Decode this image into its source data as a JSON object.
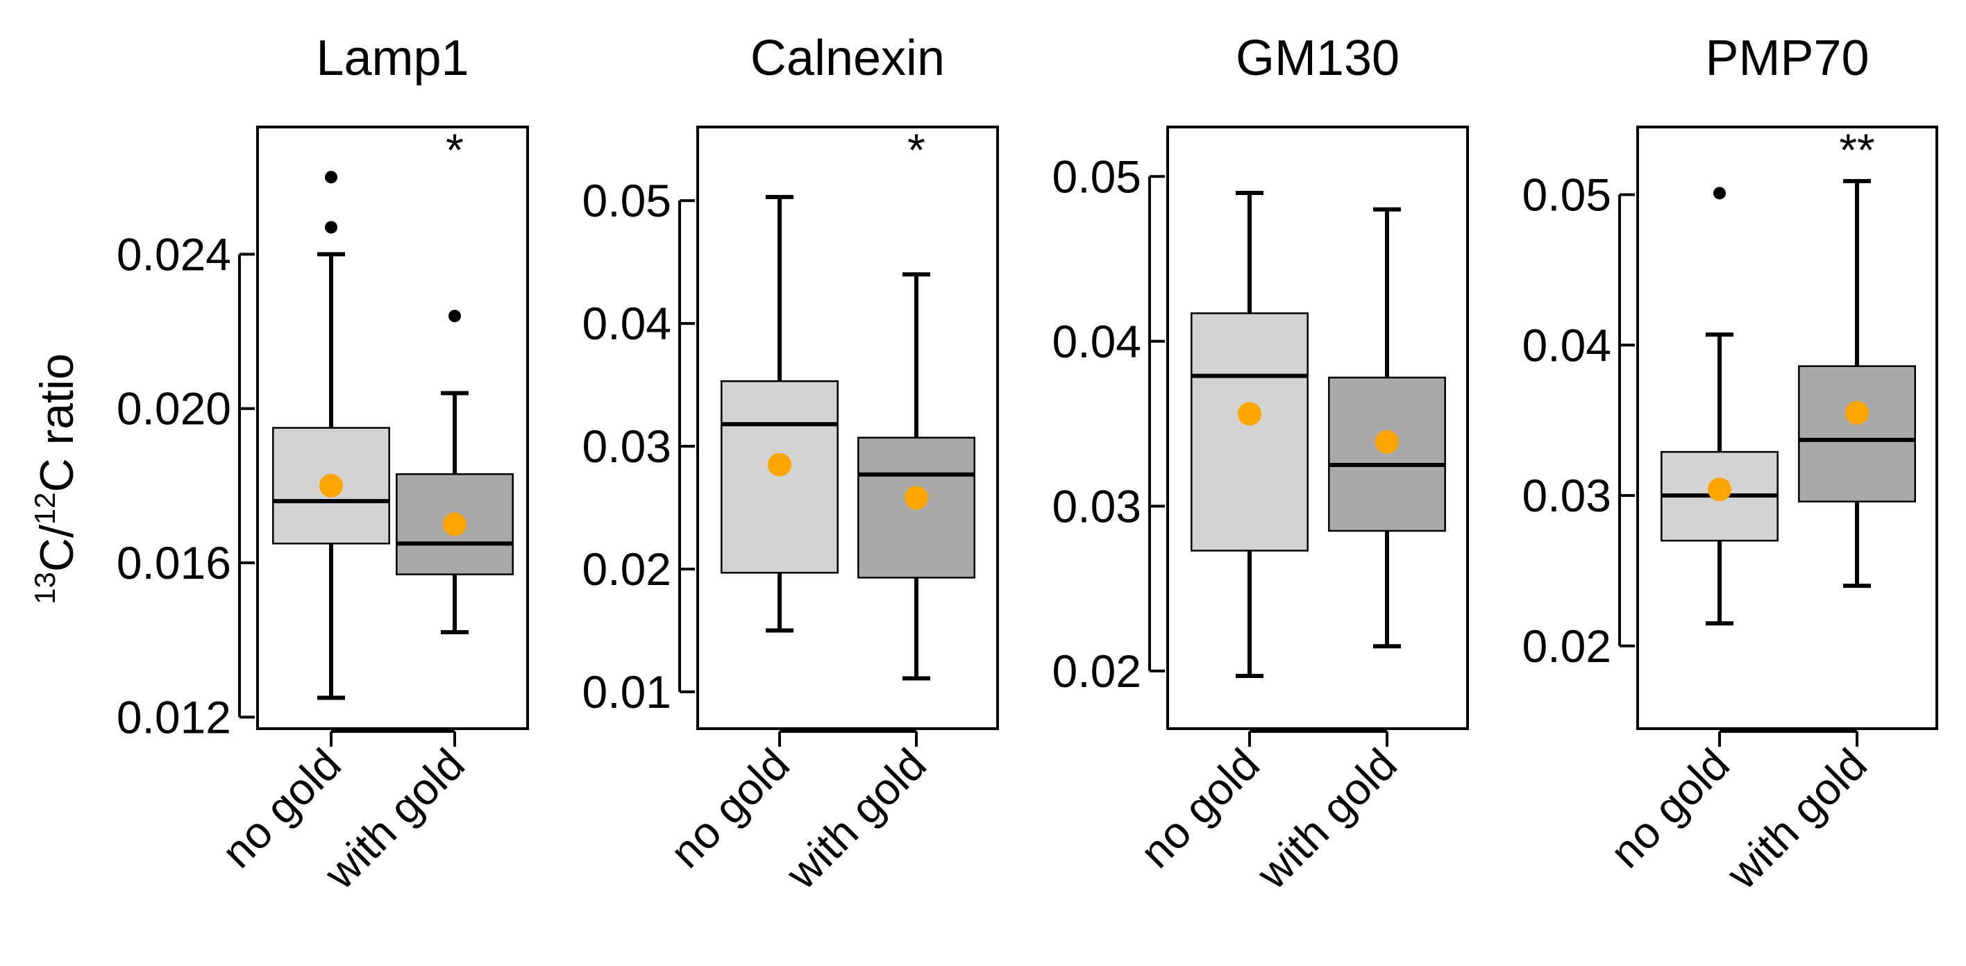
{
  "chart_data": {
    "type": "box",
    "ylabel": {
      "sup1": "13",
      "base1": "C/",
      "sup2": "12",
      "base2": "C ratio"
    },
    "categories": [
      "no gold",
      "with gold"
    ],
    "colors": {
      "no_gold_fill": "#d3d3d3",
      "with_gold_fill": "#a9a9a9",
      "mean_marker": "#ffa500",
      "line": "#000000"
    },
    "panels": [
      {
        "title": "Lamp1",
        "ylim": [
          0.0117,
          0.0273
        ],
        "ticks": [
          0.012,
          0.016,
          0.02,
          0.024
        ],
        "tick_labels": [
          "0.012",
          "0.016",
          "0.020",
          "0.024"
        ],
        "significance": "*",
        "boxes": [
          {
            "category": "no gold",
            "whisker_low": 0.0125,
            "q1": 0.0165,
            "median": 0.0176,
            "q3": 0.0195,
            "whisker_high": 0.024,
            "mean": 0.018,
            "outliers": [
              0.026,
              0.0247
            ]
          },
          {
            "category": "with gold",
            "whisker_low": 0.0142,
            "q1": 0.0157,
            "median": 0.0165,
            "q3": 0.0183,
            "whisker_high": 0.0204,
            "mean": 0.017,
            "outliers": [
              0.0224
            ]
          }
        ]
      },
      {
        "title": "Calnexin",
        "ylim": [
          0.007,
          0.056
        ],
        "ticks": [
          0.01,
          0.02,
          0.03,
          0.04,
          0.05
        ],
        "tick_labels": [
          "0.01",
          "0.02",
          "0.03",
          "0.04",
          "0.05"
        ],
        "significance": "*",
        "boxes": [
          {
            "category": "no gold",
            "whisker_low": 0.015,
            "q1": 0.0197,
            "median": 0.0318,
            "q3": 0.0353,
            "whisker_high": 0.0503,
            "mean": 0.0285,
            "outliers": []
          },
          {
            "category": "with gold",
            "whisker_low": 0.0111,
            "q1": 0.0193,
            "median": 0.0277,
            "q3": 0.0307,
            "whisker_high": 0.044,
            "mean": 0.0258,
            "outliers": []
          }
        ]
      },
      {
        "title": "GM130",
        "ylim": [
          0.0165,
          0.053
        ],
        "ticks": [
          0.02,
          0.03,
          0.04,
          0.05
        ],
        "tick_labels": [
          "0.02",
          "0.03",
          "0.04",
          "0.05"
        ],
        "significance": "",
        "boxes": [
          {
            "category": "no gold",
            "whisker_low": 0.0197,
            "q1": 0.0273,
            "median": 0.0379,
            "q3": 0.0417,
            "whisker_high": 0.049,
            "mean": 0.0356,
            "outliers": []
          },
          {
            "category": "with gold",
            "whisker_low": 0.0215,
            "q1": 0.0285,
            "median": 0.0325,
            "q3": 0.0378,
            "whisker_high": 0.048,
            "mean": 0.0339,
            "outliers": []
          }
        ]
      },
      {
        "title": "PMP70",
        "ylim": [
          0.0145,
          0.0545
        ],
        "ticks": [
          0.02,
          0.03,
          0.04,
          0.05
        ],
        "tick_labels": [
          "0.02",
          "0.03",
          "0.04",
          "0.05"
        ],
        "significance": "**",
        "boxes": [
          {
            "category": "no gold",
            "whisker_low": 0.0215,
            "q1": 0.027,
            "median": 0.03,
            "q3": 0.0329,
            "whisker_high": 0.0407,
            "mean": 0.0304,
            "outliers": [
              0.0501
            ]
          },
          {
            "category": "with gold",
            "whisker_low": 0.024,
            "q1": 0.0296,
            "median": 0.0337,
            "q3": 0.0386,
            "whisker_high": 0.0509,
            "mean": 0.0355,
            "outliers": []
          }
        ]
      }
    ]
  }
}
